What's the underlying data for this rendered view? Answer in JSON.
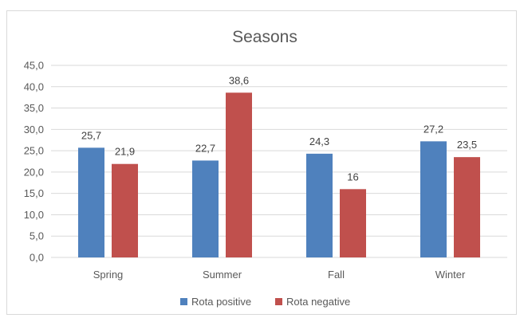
{
  "chart_data": {
    "type": "bar",
    "title": "Seasons",
    "categories": [
      "Spring",
      "Summer",
      "Fall",
      "Winter"
    ],
    "series": [
      {
        "name": "Rota positive",
        "color": "#4f81bd",
        "values": [
          25.7,
          22.7,
          24.3,
          27.2
        ],
        "labels": [
          "25,7",
          "22,7",
          "24,3",
          "27,2"
        ]
      },
      {
        "name": "Rota negative",
        "color": "#c0504d",
        "values": [
          21.9,
          38.6,
          16,
          23.5
        ],
        "labels": [
          "21,9",
          "38,6",
          "16",
          "23,5"
        ]
      }
    ],
    "ylim": [
      0,
      45
    ],
    "yticks": [
      0,
      5,
      10,
      15,
      20,
      25,
      30,
      35,
      40,
      45
    ],
    "ytick_labels": [
      "0,0",
      "5,0",
      "10,0",
      "15,0",
      "20,0",
      "25,0",
      "30,0",
      "35,0",
      "40,0",
      "45,0"
    ],
    "grid": true,
    "legend": "bottom",
    "grid_color": "#d9d9d9"
  }
}
